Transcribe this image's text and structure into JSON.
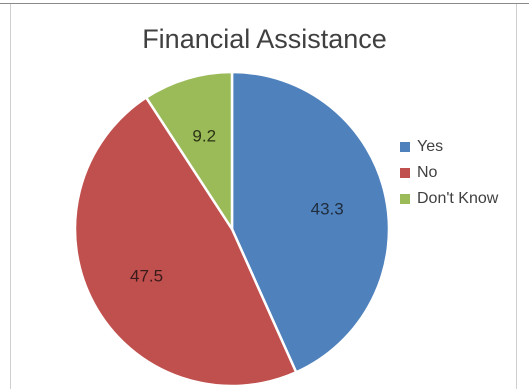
{
  "chart_data": {
    "type": "pie",
    "title": "Financial Assistance",
    "categories": [
      "Yes",
      "No",
      "Don't Know"
    ],
    "values": [
      43.3,
      47.5,
      9.2
    ],
    "colors": [
      "#4f81bd",
      "#c0504d",
      "#9bbb59"
    ],
    "data_labels": [
      "43.3",
      "47.5",
      "9.2"
    ],
    "legend_position": "right",
    "start_angle": "12 o'clock",
    "direction": "clockwise"
  }
}
